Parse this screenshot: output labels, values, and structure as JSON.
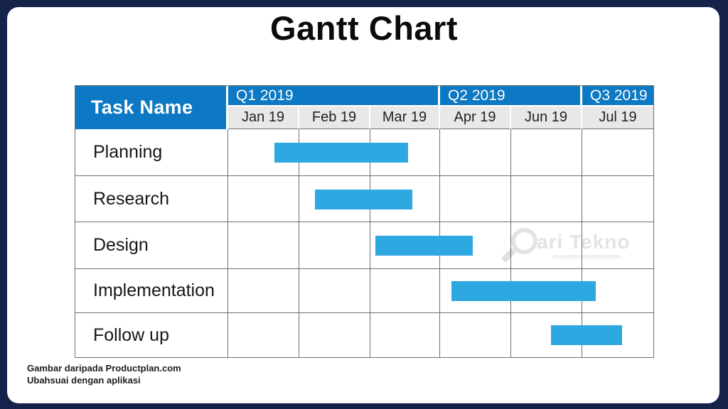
{
  "page": {
    "title": "Gantt Chart",
    "credit": {
      "line1": "Gambar daripada Productplan.com",
      "line2": "Ubahsuai dengan aplikasi"
    },
    "watermark": {
      "icon": "magnifier-as-letter-C",
      "text": "ari Tekno"
    }
  },
  "colors": {
    "frame_border": "#15234B",
    "header_blue": "#0D78C4",
    "bar_blue": "#2EA8E0",
    "month_row_bg": "#E8E8E8",
    "grid_line": "#6F6F6F"
  },
  "chart_data": {
    "type": "gantt",
    "title": "Gantt Chart",
    "corner_header": "Task Name",
    "quarter_headers": [
      {
        "label": "Q1 2019",
        "span_months": 3
      },
      {
        "label": "Q2 2019",
        "span_months": 2
      },
      {
        "label": "Q3 2019",
        "span_months": 1
      }
    ],
    "month_headers": [
      "Jan 19",
      "Feb 19",
      "Mar 19",
      "Apr 19",
      "Jun 19",
      "Jul 19"
    ],
    "timeline_months": 6,
    "tasks": [
      {
        "name": "Planning",
        "start_month": 0.65,
        "end_month": 2.54
      },
      {
        "name": "Research",
        "start_month": 1.22,
        "end_month": 2.6
      },
      {
        "name": "Design",
        "start_month": 2.08,
        "end_month": 3.45
      },
      {
        "name": "Implementation",
        "start_month": 3.15,
        "end_month": 5.19
      },
      {
        "name": "Follow up",
        "start_month": 4.56,
        "end_month": 5.56
      }
    ],
    "bar_color": "#2EA8E0",
    "grid": true,
    "legend": "none"
  }
}
